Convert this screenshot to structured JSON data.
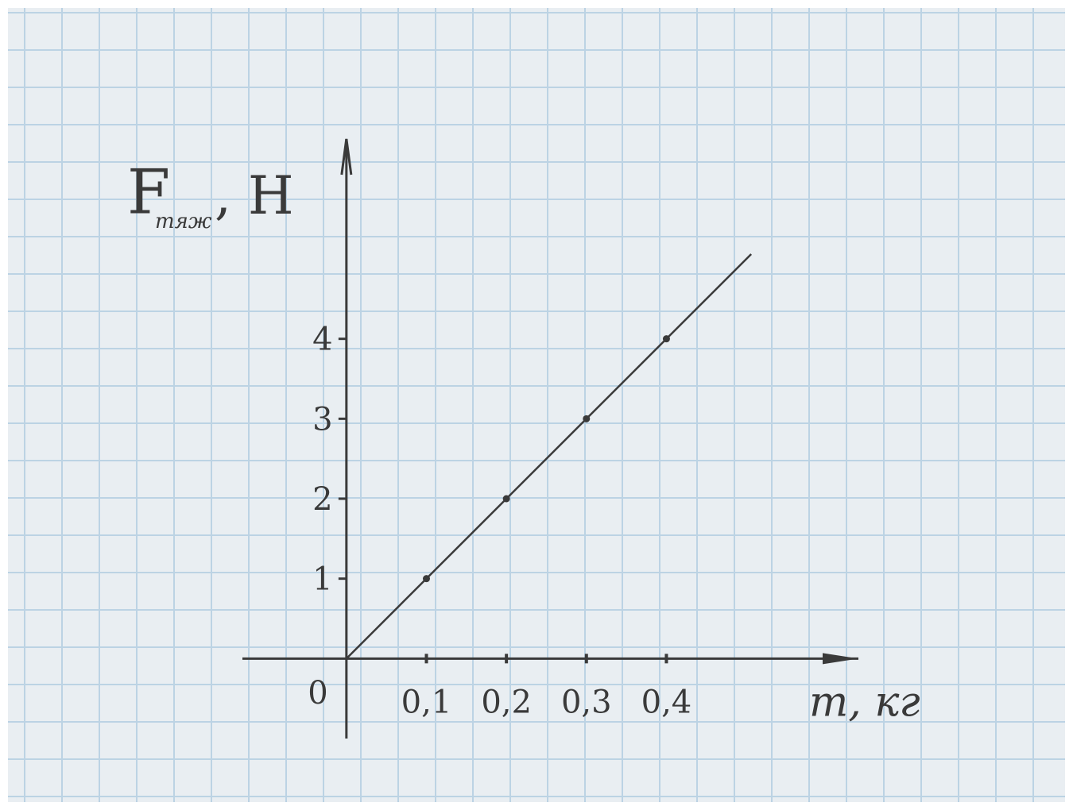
{
  "chart_data": {
    "type": "line",
    "ylabel": "F",
    "ylabel_sub": "тяж",
    "ylabel_unit": ", H",
    "xlabel": "m, кг",
    "origin_label": "0",
    "xlim": [
      -0.13,
      0.64
    ],
    "ylim": [
      -1,
      6.5
    ],
    "xticks": [
      {
        "value": 0.1,
        "label": "0,1"
      },
      {
        "value": 0.2,
        "label": "0,2"
      },
      {
        "value": 0.3,
        "label": "0,3"
      },
      {
        "value": 0.4,
        "label": "0,4"
      }
    ],
    "yticks": [
      1,
      2,
      3,
      4
    ],
    "color": "#3a3a3a",
    "series": [
      {
        "x": [
          0,
          0.506
        ],
        "values": [
          0,
          5.06
        ],
        "marker": false,
        "line": true
      },
      {
        "x": [
          0.1,
          0.2,
          0.3,
          0.4
        ],
        "values": [
          1,
          2,
          3,
          4
        ],
        "marker": true,
        "line": false
      }
    ]
  }
}
